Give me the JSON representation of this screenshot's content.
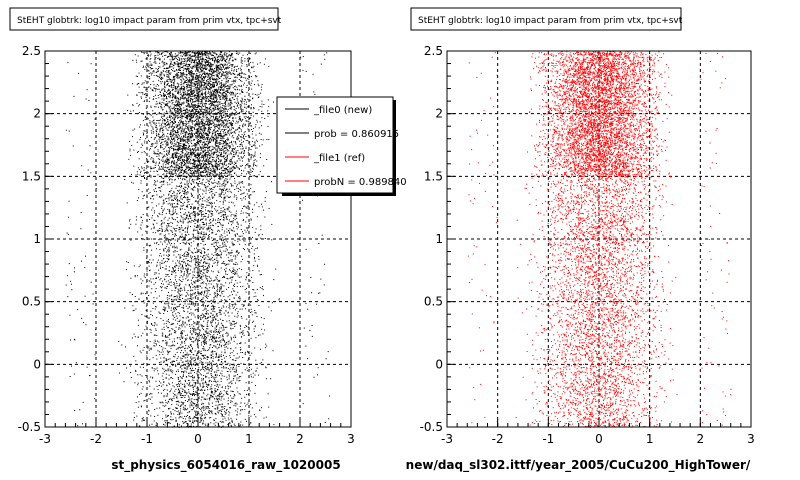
{
  "colors": {
    "black_series": "#000000",
    "red_series": "#ff0000",
    "background": "#ffffff",
    "frame": "#000000"
  },
  "chart_data": [
    {
      "type": "scatter",
      "title": "StEHT globtrk: log10 impact param from prim vtx, tpc+svt",
      "xlabel": "st_physics_6054016_raw_1020005",
      "ylabel": "",
      "xlim": [
        -3,
        3
      ],
      "ylim": [
        -0.5,
        2.5
      ],
      "x_ticks": [
        "-3",
        "-2",
        "-1",
        "0",
        "1",
        "2",
        "3"
      ],
      "y_ticks": [
        "-0.5",
        "0",
        "0.5",
        "1",
        "1.5",
        "2",
        "2.5"
      ],
      "grid": true,
      "series": [
        {
          "name": "_file0 (new)",
          "color": "#000000",
          "x_range": [
            -2,
            2
          ],
          "y_range": [
            -0.5,
            2.5
          ],
          "dense_band": [
            1.5,
            2.5
          ]
        }
      ],
      "legend": {
        "placement": "top-right",
        "entries": [
          {
            "label": "_file0 (new)",
            "color": "#000000"
          },
          {
            "label": "prob = 0.860915",
            "color": "#000000"
          },
          {
            "label": "_file1 (ref)",
            "color": "#ff0000"
          },
          {
            "label": "probN = 0.989840",
            "color": "#ff0000"
          }
        ]
      }
    },
    {
      "type": "scatter",
      "title": "StEHT globtrk: log10 impact param from prim vtx, tpc+svt",
      "xlabel": "new/daq_sl302.ittf/year_2005/CuCu200_HighTower/",
      "ylabel": "",
      "xlim": [
        -3,
        3
      ],
      "ylim": [
        -0.5,
        2.5
      ],
      "x_ticks": [
        "-3",
        "-2",
        "-1",
        "0",
        "1",
        "2",
        "3"
      ],
      "y_ticks": [
        "-0.5",
        "0",
        "0.5",
        "1",
        "1.5",
        "2",
        "2.5"
      ],
      "grid": true,
      "series": [
        {
          "name": "_file1 (ref)",
          "color": "#ff0000",
          "x_range": [
            -2,
            2
          ],
          "y_range": [
            -0.5,
            2.5
          ],
          "dense_band": [
            1.5,
            2.5
          ]
        }
      ]
    }
  ]
}
